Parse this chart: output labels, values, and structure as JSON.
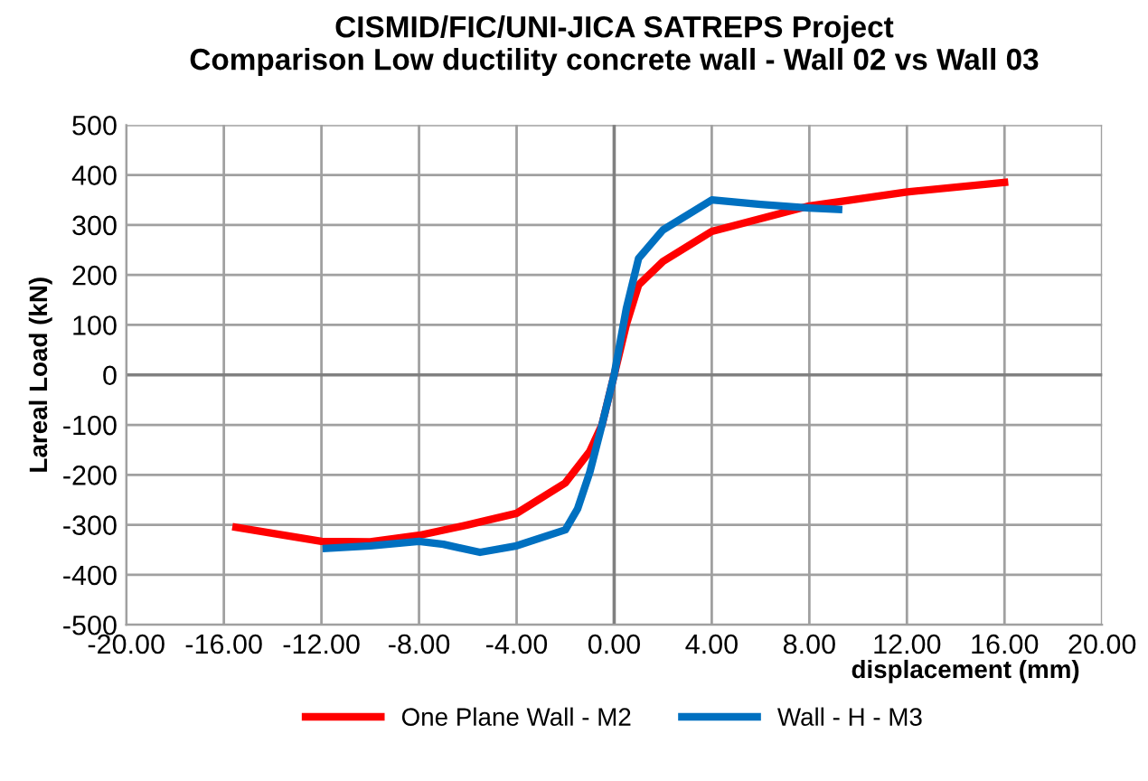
{
  "chart_data": {
    "type": "line",
    "title": "CISMID/FIC/UNI-JICA SATREPS Project\nComparison Low ductility concrete wall - Wall 02 vs Wall 03",
    "xlabel": "displacement (mm)",
    "ylabel": "Lareal Load (kN)",
    "series": [
      {
        "name": "One Plane Wall - M2",
        "color": "#ff0000",
        "x": [
          -15.5,
          -12,
          -10,
          -8,
          -6,
          -4,
          -2,
          -1,
          -0.5,
          0,
          0.5,
          1,
          2,
          4,
          8,
          12,
          16
        ],
        "values": [
          -305,
          -333,
          -334,
          -321,
          -300,
          -277,
          -216,
          -153,
          -100,
          0,
          101,
          180,
          227,
          287,
          338,
          366,
          385
        ]
      },
      {
        "name": "Wall - H - M3",
        "color": "#0070c0",
        "x": [
          -11.8,
          -10,
          -8,
          -7,
          -5.5,
          -4,
          -2,
          -1.5,
          -1,
          -0.5,
          0,
          0.5,
          1,
          2,
          4,
          6,
          8,
          9.2
        ],
        "values": [
          -347,
          -342,
          -333,
          -339,
          -355,
          -342,
          -310,
          -268,
          -195,
          -100,
          0,
          133,
          233,
          290,
          350,
          341,
          334,
          331
        ]
      }
    ],
    "xlim": [
      -20,
      20
    ],
    "ylim": [
      -500,
      500
    ],
    "xticks": [
      {
        "value": -20,
        "label": "-20.00"
      },
      {
        "value": -16,
        "label": "-16.00"
      },
      {
        "value": -12,
        "label": "-12.00"
      },
      {
        "value": -8,
        "label": "-8.00"
      },
      {
        "value": -4,
        "label": "-4.00"
      },
      {
        "value": 0,
        "label": "0.00"
      },
      {
        "value": 4,
        "label": "4.00"
      },
      {
        "value": 8,
        "label": "8.00"
      },
      {
        "value": 12,
        "label": "12.00"
      },
      {
        "value": 16,
        "label": "16.00"
      },
      {
        "value": 20,
        "label": "20.00"
      }
    ],
    "yticks": [
      -500,
      -400,
      -300,
      -200,
      -100,
      0,
      100,
      200,
      300,
      400,
      500
    ],
    "grid": true,
    "legend": "bottom",
    "marker": "none",
    "line_style": "solid"
  }
}
